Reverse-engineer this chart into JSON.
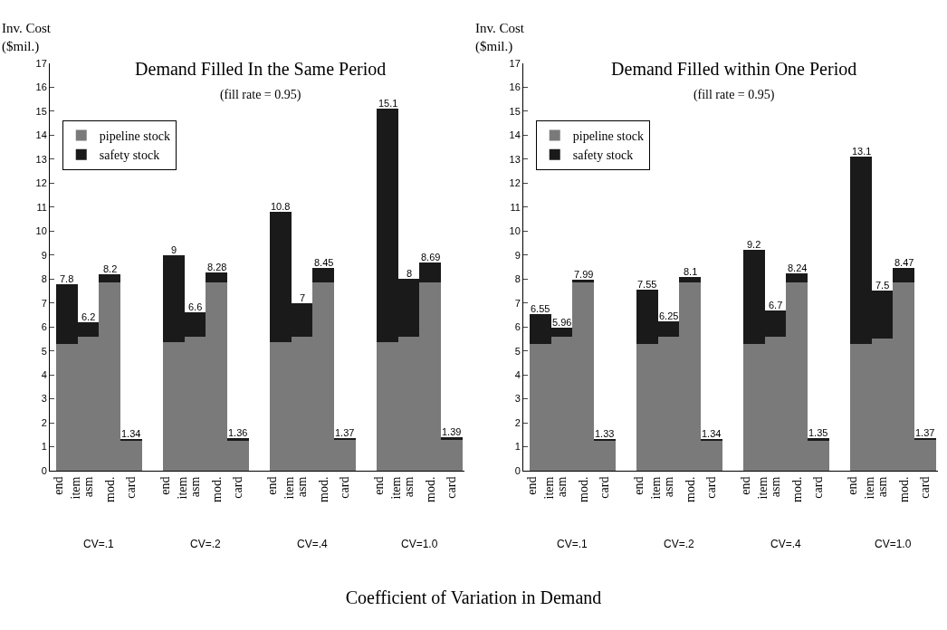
{
  "chart_data": [
    {
      "type": "bar",
      "stacked": true,
      "title": "Demand Filled In the Same Period",
      "subtitle": "(fill rate = 0.95)",
      "ylabel": "Inv. Cost ($mil.)",
      "xlabel": "Coefficient of Variation in Demand",
      "categories": [
        "end item",
        "asm",
        "mod.",
        "card",
        null,
        "end item",
        "asm",
        "mod.",
        "card",
        null,
        "end item",
        "asm",
        "mod.",
        "card",
        null,
        "end item",
        "asm",
        "mod.",
        "card"
      ],
      "series": [
        {
          "name": "pipeline stock",
          "color": "#7a7a7a",
          "values": [
            5.3,
            5.6,
            7.85,
            1.24,
            null,
            5.35,
            5.6,
            7.85,
            1.26,
            null,
            5.35,
            5.6,
            7.85,
            1.27,
            null,
            5.35,
            5.6,
            7.85,
            1.29
          ]
        },
        {
          "name": "safety stock",
          "color": "#1a1a1a",
          "values": [
            2.5,
            0.6,
            0.35,
            0.1,
            null,
            3.65,
            1.0,
            0.43,
            0.1,
            null,
            5.45,
            1.4,
            0.6,
            0.1,
            null,
            9.75,
            2.4,
            0.84,
            0.1
          ]
        }
      ],
      "totals": [
        "7.8",
        "6.2",
        "8.2",
        "1.34",
        null,
        "9",
        "6.6",
        "8.28",
        "1.36",
        null,
        "10.8",
        "7",
        "8.45",
        "1.37",
        null,
        "15.1",
        "8",
        "8.69",
        "1.39"
      ],
      "annotations": [
        "CV=.1",
        "CV=.2",
        "CV=.4",
        "CV=1.0"
      ],
      "ylim": [
        0,
        17
      ],
      "yticks": [
        0,
        1,
        2,
        3,
        4,
        5,
        6,
        7,
        8,
        9,
        10,
        11,
        12,
        13,
        14,
        15,
        16,
        17
      ],
      "grid": false,
      "legend": "top left"
    },
    {
      "type": "bar",
      "stacked": true,
      "title": "Demand Filled within One Period",
      "subtitle": "(fill rate = 0.95)",
      "ylabel": "Inv. Cost ($mil.)",
      "categories": [
        "end item",
        "asm",
        "mod.",
        "card",
        null,
        "end item",
        "asm",
        "mod.",
        "card",
        null,
        "end item",
        "asm",
        "mod.",
        "card",
        null,
        "end item",
        "asm",
        "mod.",
        "card"
      ],
      "series": [
        {
          "name": "pipeline stock",
          "color": "#7a7a7a",
          "values": [
            5.3,
            5.6,
            7.85,
            1.23,
            null,
            5.3,
            5.6,
            7.85,
            1.24,
            null,
            5.3,
            5.6,
            7.85,
            1.25,
            null,
            5.3,
            5.5,
            7.85,
            1.27
          ]
        },
        {
          "name": "safety stock",
          "color": "#1a1a1a",
          "values": [
            1.25,
            0.36,
            0.14,
            0.1,
            null,
            2.25,
            0.65,
            0.25,
            0.1,
            null,
            3.9,
            1.1,
            0.39,
            0.1,
            null,
            7.8,
            2.0,
            0.62,
            0.1
          ]
        }
      ],
      "totals": [
        "6.55",
        "5.96",
        "7.99",
        "1.33",
        null,
        "7.55",
        "6.25",
        "8.1",
        "1.34",
        null,
        "9.2",
        "6.7",
        "8.24",
        "1.35",
        null,
        "13.1",
        "7.5",
        "8.47",
        "1.37"
      ],
      "annotations": [
        "CV=.1",
        "CV=.2",
        "CV=.4",
        "CV=1.0"
      ],
      "ylim": [
        0,
        17
      ],
      "yticks": [
        0,
        1,
        2,
        3,
        4,
        5,
        6,
        7,
        8,
        9,
        10,
        11,
        12,
        13,
        14,
        15,
        16,
        17
      ],
      "grid": false,
      "legend": "top left"
    }
  ]
}
